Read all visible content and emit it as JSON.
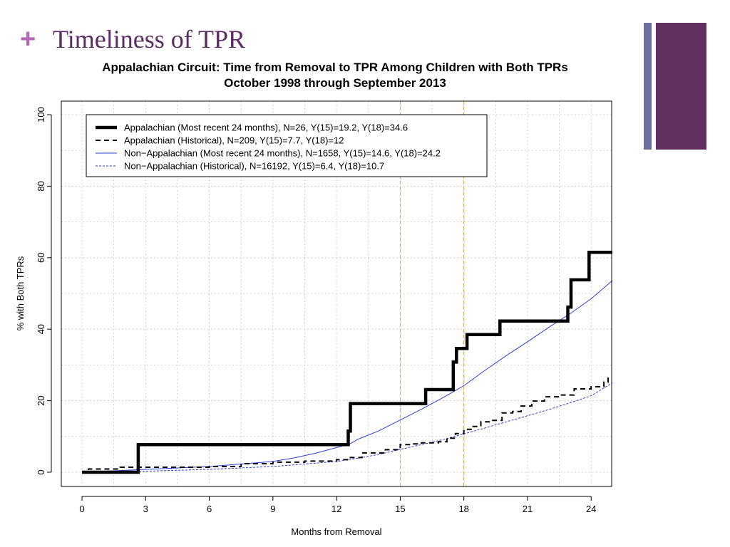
{
  "slide": {
    "title": "Timeliness of TPR",
    "bullet": "+",
    "accent_colors": {
      "plus": "#b368b4",
      "title": "#5b2c63",
      "bar_thin": "#6b6fa3",
      "bar_thick": "#62305f"
    }
  },
  "chart_data": {
    "type": "line",
    "title": "Appalachian Circuit: Time from Removal to TPR Among Children with Both TPRs",
    "subtitle": "October 1998 through September 2013",
    "xlabel": "Months from Removal",
    "ylabel": "% with Both TPRs",
    "xlim": [
      0,
      25
    ],
    "ylim": [
      0,
      100
    ],
    "xticks": [
      0,
      3,
      6,
      9,
      12,
      15,
      18,
      21,
      24
    ],
    "yticks": [
      0,
      20,
      40,
      60,
      80,
      100
    ],
    "grid": true,
    "reference_lines_x": [
      15,
      18
    ],
    "legend_position": "top-left",
    "series": [
      {
        "name": "Appalachian (Most recent 24 months), N=26, Y(15)=19.2, Y(18)=34.6",
        "style": "solid-thick",
        "color": "#000000",
        "step": true,
        "x": [
          0,
          2.65,
          12.55,
          12.65,
          16.2,
          17.5,
          17.65,
          18.15,
          19.7,
          22.9,
          23.05,
          23.9,
          25
        ],
        "y": [
          0,
          7.7,
          11.5,
          19.2,
          23.1,
          30.8,
          34.6,
          38.5,
          42.3,
          46.2,
          53.8,
          61.5,
          61.5
        ]
      },
      {
        "name": "Appalachian (Historical), N=209, Y(15)=7.7, Y(18)=12",
        "style": "dashed",
        "color": "#000000",
        "step": true,
        "x": [
          0,
          0.3,
          1.8,
          4,
          6,
          7.5,
          9,
          10.5,
          12,
          12.6,
          13.2,
          14.3,
          15,
          15.5,
          16,
          16.8,
          17.2,
          17.6,
          18,
          18.4,
          18.8,
          19.3,
          19.8,
          20.3,
          20.7,
          21.2,
          21.8,
          22.6,
          23.2,
          24,
          24.6,
          24.8
        ],
        "y": [
          0,
          0.9,
          1.4,
          1.4,
          1.6,
          2.4,
          2.8,
          3.1,
          3.5,
          4.1,
          5.4,
          6.3,
          7.7,
          7.9,
          8.2,
          8.5,
          9.5,
          10.8,
          12,
          12.8,
          14.1,
          14.5,
          16.6,
          17,
          18.5,
          19.9,
          21.1,
          21.6,
          23.3,
          23.9,
          25.2,
          26.9
        ]
      },
      {
        "name": "Non−Appalachian (Most recent 24 months), N=1658, Y(15)=14.6, Y(18)=24.2",
        "style": "solid-thin",
        "color": "#2b3fd6",
        "step": false,
        "x": [
          0,
          3,
          6,
          9,
          10,
          11,
          12,
          12.6,
          13,
          14,
          15,
          16,
          17,
          18,
          19,
          20,
          21,
          22,
          23,
          24,
          25
        ],
        "y": [
          0,
          0.8,
          1.6,
          3,
          4,
          5.3,
          6.9,
          7.8,
          9.2,
          11.6,
          14.6,
          17.6,
          20.8,
          24.2,
          28.5,
          32.6,
          36.5,
          40.5,
          44.3,
          48.5,
          53.6
        ]
      },
      {
        "name": "Non−Appalachian (Historical), N=16192, Y(15)=6.4, Y(18)=10.7",
        "style": "dashed-thin",
        "color": "#2b3fd6",
        "step": false,
        "x": [
          0,
          3,
          6,
          9,
          12,
          13,
          14,
          15,
          16,
          17,
          18,
          19,
          20,
          21,
          22,
          23,
          24,
          25
        ],
        "y": [
          0,
          0.3,
          0.8,
          1.6,
          3,
          3.9,
          5,
          6.4,
          7.7,
          9.1,
          10.7,
          12.4,
          14.1,
          15.8,
          17.5,
          19.4,
          21.4,
          25
        ]
      }
    ]
  }
}
